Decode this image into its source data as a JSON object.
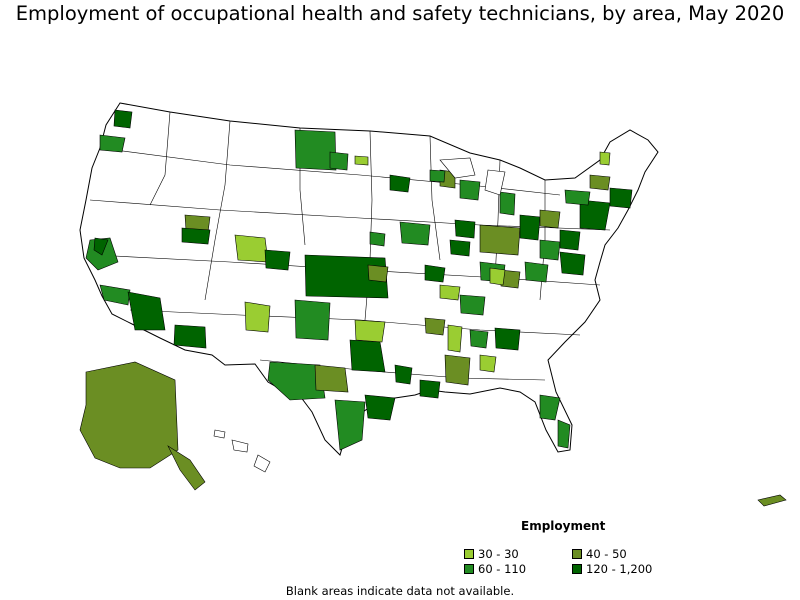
{
  "title": "Employment of occupational health and safety technicians, by area, May 2020",
  "legend": {
    "title": "Employment",
    "items": [
      {
        "label": "30 - 30",
        "color": "#9acd32"
      },
      {
        "label": "40 - 50",
        "color": "#6b8e23"
      },
      {
        "label": "60 - 110",
        "color": "#228b22"
      },
      {
        "label": "120 - 1,200",
        "color": "#006400"
      }
    ]
  },
  "note": "Blank areas indicate data not available."
}
